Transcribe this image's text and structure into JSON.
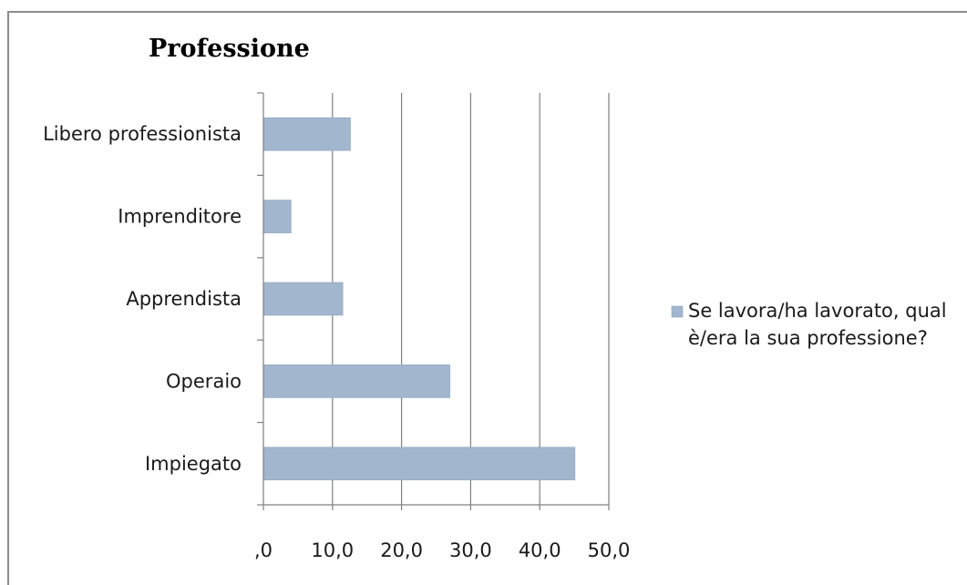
{
  "colors": {
    "bar": "#a2b6cd",
    "bar_edge": "#8ea4bf",
    "gridline": "#808080",
    "axis": "#808080"
  },
  "chart_data": {
    "type": "bar",
    "orientation": "horizontal",
    "title": "Professione",
    "categories": [
      "Libero professionista",
      "Imprenditore",
      "Apprendista",
      "Operaio",
      "Impiegato"
    ],
    "series": [
      {
        "name": "Se lavora/ha lavorato, qual è/era la sua professione?",
        "legend_lines": [
          "Se lavora/ha lavorato, qual",
          "è/era la sua professione?"
        ],
        "values": [
          12.6,
          4.0,
          11.5,
          27.0,
          45.1
        ]
      }
    ],
    "xlim": [
      0,
      50
    ],
    "xticks": [
      ",0",
      "10,0",
      "20,0",
      "30,0",
      "40,0",
      "50,0"
    ],
    "grid": true,
    "legend": "right"
  }
}
